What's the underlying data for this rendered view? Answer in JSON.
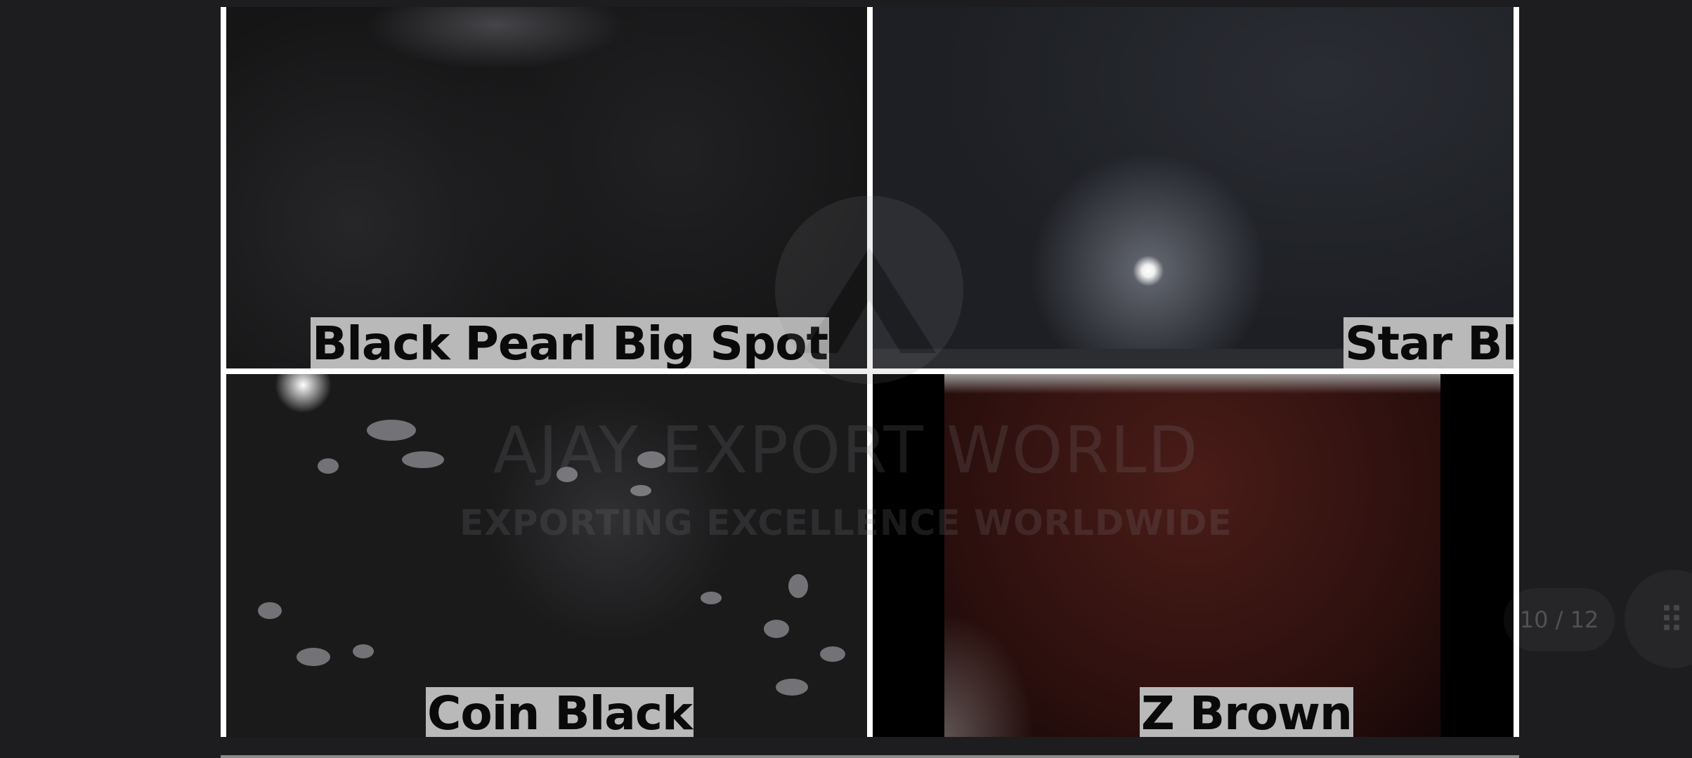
{
  "viewer": {
    "page_counter": "10 / 12"
  },
  "tiles": [
    {
      "label": "Black Pearl Big Spot"
    },
    {
      "label": "Star Black"
    },
    {
      "label": "Coin Black"
    },
    {
      "label": "Z Brown"
    }
  ],
  "watermark": {
    "title": "AJAY EXPORT WORLD",
    "subtitle": "EXPORTING EXCELLENCE WORLDWIDE"
  },
  "icons": {
    "grid": "grid-icon",
    "logo": "logo-icon"
  }
}
